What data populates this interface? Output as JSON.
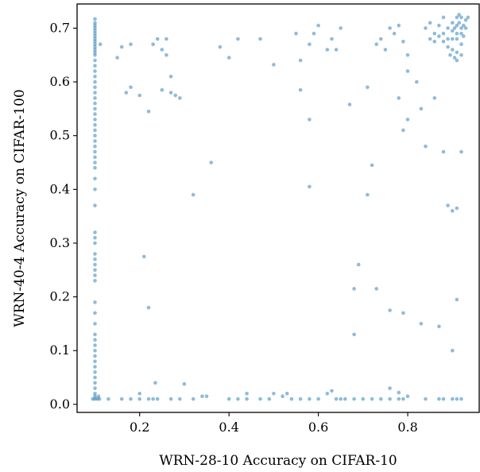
{
  "chart_data": {
    "type": "scatter",
    "title": "",
    "xlabel": "WRN-28-10 Accuracy on CIFAR-10",
    "ylabel": "WRN-40-4 Accuracy on CIFAR-100",
    "xlim": [
      0.06,
      0.96
    ],
    "ylim": [
      -0.015,
      0.745
    ],
    "xticks": [
      0.2,
      0.4,
      0.6,
      0.8
    ],
    "xtick_labels": [
      "0.2",
      "0.4",
      "0.6",
      "0.8"
    ],
    "yticks": [
      0.0,
      0.1,
      0.2,
      0.3,
      0.4,
      0.5,
      0.6,
      0.7
    ],
    "ytick_labels": [
      "0.0",
      "0.1",
      "0.2",
      "0.3",
      "0.4",
      "0.5",
      "0.6",
      "0.7"
    ],
    "grid": false,
    "legend": "none",
    "color": "#1f77b4",
    "series": [
      {
        "points": [
          [
            0.1,
            0.717
          ],
          [
            0.1,
            0.71
          ],
          [
            0.1,
            0.705
          ],
          [
            0.1,
            0.7
          ],
          [
            0.1,
            0.695
          ],
          [
            0.1,
            0.69
          ],
          [
            0.1,
            0.685
          ],
          [
            0.1,
            0.68
          ],
          [
            0.1,
            0.675
          ],
          [
            0.1,
            0.67
          ],
          [
            0.1,
            0.665
          ],
          [
            0.1,
            0.66
          ],
          [
            0.1,
            0.655
          ],
          [
            0.1,
            0.65
          ],
          [
            0.1,
            0.64
          ],
          [
            0.1,
            0.63
          ],
          [
            0.1,
            0.62
          ],
          [
            0.1,
            0.61
          ],
          [
            0.1,
            0.6
          ],
          [
            0.1,
            0.59
          ],
          [
            0.1,
            0.58
          ],
          [
            0.1,
            0.57
          ],
          [
            0.1,
            0.56
          ],
          [
            0.1,
            0.55
          ],
          [
            0.1,
            0.54
          ],
          [
            0.1,
            0.53
          ],
          [
            0.1,
            0.52
          ],
          [
            0.1,
            0.51
          ],
          [
            0.1,
            0.5
          ],
          [
            0.1,
            0.49
          ],
          [
            0.1,
            0.48
          ],
          [
            0.1,
            0.47
          ],
          [
            0.1,
            0.46
          ],
          [
            0.1,
            0.45
          ],
          [
            0.1,
            0.44
          ],
          [
            0.1,
            0.42
          ],
          [
            0.1,
            0.4
          ],
          [
            0.1,
            0.37
          ],
          [
            0.1,
            0.32
          ],
          [
            0.1,
            0.31
          ],
          [
            0.1,
            0.3
          ],
          [
            0.1,
            0.28
          ],
          [
            0.1,
            0.27
          ],
          [
            0.1,
            0.26
          ],
          [
            0.1,
            0.25
          ],
          [
            0.1,
            0.24
          ],
          [
            0.1,
            0.23
          ],
          [
            0.1,
            0.19
          ],
          [
            0.1,
            0.17
          ],
          [
            0.1,
            0.15
          ],
          [
            0.1,
            0.13
          ],
          [
            0.1,
            0.12
          ],
          [
            0.1,
            0.11
          ],
          [
            0.1,
            0.1
          ],
          [
            0.1,
            0.09
          ],
          [
            0.1,
            0.08
          ],
          [
            0.1,
            0.07
          ],
          [
            0.1,
            0.06
          ],
          [
            0.1,
            0.05
          ],
          [
            0.1,
            0.04
          ],
          [
            0.1,
            0.03
          ],
          [
            0.1,
            0.02
          ],
          [
            0.1,
            0.015
          ],
          [
            0.1,
            0.01
          ],
          [
            0.105,
            0.01
          ],
          [
            0.11,
            0.01
          ],
          [
            0.108,
            0.015
          ],
          [
            0.095,
            0.01
          ],
          [
            0.112,
            0.67
          ],
          [
            0.13,
            0.01
          ],
          [
            0.16,
            0.01
          ],
          [
            0.18,
            0.01
          ],
          [
            0.2,
            0.01
          ],
          [
            0.22,
            0.01
          ],
          [
            0.23,
            0.01
          ],
          [
            0.24,
            0.01
          ],
          [
            0.27,
            0.01
          ],
          [
            0.29,
            0.01
          ],
          [
            0.32,
            0.01
          ],
          [
            0.34,
            0.015
          ],
          [
            0.35,
            0.015
          ],
          [
            0.4,
            0.01
          ],
          [
            0.42,
            0.01
          ],
          [
            0.44,
            0.01
          ],
          [
            0.47,
            0.01
          ],
          [
            0.49,
            0.01
          ],
          [
            0.5,
            0.02
          ],
          [
            0.52,
            0.015
          ],
          [
            0.54,
            0.01
          ],
          [
            0.56,
            0.01
          ],
          [
            0.58,
            0.01
          ],
          [
            0.6,
            0.01
          ],
          [
            0.62,
            0.02
          ],
          [
            0.64,
            0.01
          ],
          [
            0.65,
            0.01
          ],
          [
            0.66,
            0.01
          ],
          [
            0.68,
            0.01
          ],
          [
            0.7,
            0.01
          ],
          [
            0.72,
            0.01
          ],
          [
            0.74,
            0.01
          ],
          [
            0.76,
            0.01
          ],
          [
            0.78,
            0.01
          ],
          [
            0.79,
            0.01
          ],
          [
            0.8,
            0.015
          ],
          [
            0.84,
            0.01
          ],
          [
            0.87,
            0.01
          ],
          [
            0.88,
            0.01
          ],
          [
            0.9,
            0.01
          ],
          [
            0.91,
            0.01
          ],
          [
            0.92,
            0.01
          ],
          [
            0.2,
            0.02
          ],
          [
            0.235,
            0.04
          ],
          [
            0.3,
            0.038
          ],
          [
            0.44,
            0.02
          ],
          [
            0.53,
            0.02
          ],
          [
            0.63,
            0.025
          ],
          [
            0.76,
            0.03
          ],
          [
            0.78,
            0.022
          ],
          [
            0.15,
            0.645
          ],
          [
            0.16,
            0.665
          ],
          [
            0.18,
            0.67
          ],
          [
            0.18,
            0.59
          ],
          [
            0.17,
            0.58
          ],
          [
            0.2,
            0.575
          ],
          [
            0.22,
            0.545
          ],
          [
            0.23,
            0.67
          ],
          [
            0.24,
            0.68
          ],
          [
            0.25,
            0.585
          ],
          [
            0.26,
            0.65
          ],
          [
            0.27,
            0.61
          ],
          [
            0.27,
            0.58
          ],
          [
            0.28,
            0.575
          ],
          [
            0.29,
            0.57
          ],
          [
            0.25,
            0.66
          ],
          [
            0.26,
            0.68
          ],
          [
            0.38,
            0.665
          ],
          [
            0.4,
            0.645
          ],
          [
            0.42,
            0.68
          ],
          [
            0.47,
            0.68
          ],
          [
            0.5,
            0.632
          ],
          [
            0.55,
            0.69
          ],
          [
            0.56,
            0.64
          ],
          [
            0.56,
            0.585
          ],
          [
            0.58,
            0.67
          ],
          [
            0.59,
            0.69
          ],
          [
            0.6,
            0.705
          ],
          [
            0.62,
            0.66
          ],
          [
            0.63,
            0.68
          ],
          [
            0.64,
            0.66
          ],
          [
            0.65,
            0.7
          ],
          [
            0.58,
            0.53
          ],
          [
            0.67,
            0.558
          ],
          [
            0.71,
            0.59
          ],
          [
            0.73,
            0.67
          ],
          [
            0.74,
            0.68
          ],
          [
            0.75,
            0.66
          ],
          [
            0.76,
            0.7
          ],
          [
            0.77,
            0.69
          ],
          [
            0.78,
            0.705
          ],
          [
            0.79,
            0.675
          ],
          [
            0.8,
            0.65
          ],
          [
            0.8,
            0.62
          ],
          [
            0.78,
            0.57
          ],
          [
            0.79,
            0.51
          ],
          [
            0.8,
            0.53
          ],
          [
            0.82,
            0.6
          ],
          [
            0.83,
            0.55
          ],
          [
            0.84,
            0.48
          ],
          [
            0.86,
            0.57
          ],
          [
            0.88,
            0.47
          ],
          [
            0.36,
            0.45
          ],
          [
            0.32,
            0.39
          ],
          [
            0.21,
            0.275
          ],
          [
            0.22,
            0.18
          ],
          [
            0.58,
            0.405
          ],
          [
            0.71,
            0.39
          ],
          [
            0.72,
            0.445
          ],
          [
            0.69,
            0.26
          ],
          [
            0.68,
            0.215
          ],
          [
            0.73,
            0.215
          ],
          [
            0.76,
            0.175
          ],
          [
            0.79,
            0.17
          ],
          [
            0.83,
            0.15
          ],
          [
            0.68,
            0.13
          ],
          [
            0.89,
            0.37
          ],
          [
            0.9,
            0.36
          ],
          [
            0.91,
            0.365
          ],
          [
            0.91,
            0.195
          ],
          [
            0.9,
            0.1
          ],
          [
            0.87,
            0.145
          ],
          [
            0.92,
            0.47
          ],
          [
            0.84,
            0.7
          ],
          [
            0.85,
            0.71
          ],
          [
            0.86,
            0.69
          ],
          [
            0.87,
            0.705
          ],
          [
            0.88,
            0.69
          ],
          [
            0.88,
            0.72
          ],
          [
            0.89,
            0.7
          ],
          [
            0.89,
            0.68
          ],
          [
            0.9,
            0.71
          ],
          [
            0.9,
            0.695
          ],
          [
            0.9,
            0.68
          ],
          [
            0.905,
            0.7
          ],
          [
            0.91,
            0.72
          ],
          [
            0.91,
            0.705
          ],
          [
            0.91,
            0.69
          ],
          [
            0.91,
            0.68
          ],
          [
            0.915,
            0.71
          ],
          [
            0.92,
            0.7
          ],
          [
            0.92,
            0.72
          ],
          [
            0.92,
            0.69
          ],
          [
            0.925,
            0.705
          ],
          [
            0.93,
            0.715
          ],
          [
            0.93,
            0.7
          ],
          [
            0.89,
            0.665
          ],
          [
            0.9,
            0.66
          ],
          [
            0.91,
            0.655
          ],
          [
            0.92,
            0.67
          ],
          [
            0.895,
            0.65
          ],
          [
            0.905,
            0.645
          ],
          [
            0.88,
            0.675
          ],
          [
            0.87,
            0.685
          ],
          [
            0.86,
            0.675
          ],
          [
            0.85,
            0.68
          ],
          [
            0.91,
            0.64
          ],
          [
            0.92,
            0.65
          ],
          [
            0.925,
            0.685
          ],
          [
            0.935,
            0.72
          ],
          [
            0.915,
            0.725
          ]
        ]
      }
    ]
  }
}
